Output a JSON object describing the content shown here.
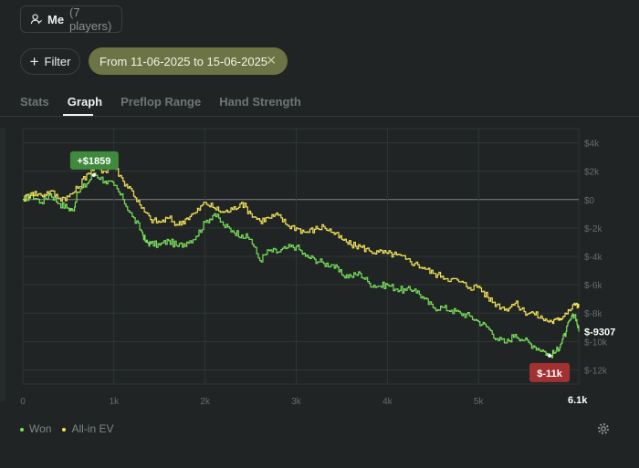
{
  "player_selector": {
    "name": "Me",
    "count": "(7 players)"
  },
  "filter": {
    "label": "Filter",
    "date_range": "From 11-06-2025 to 15-06-2025"
  },
  "tabs": [
    {
      "label": "Stats",
      "active": false
    },
    {
      "label": "Graph",
      "active": true
    },
    {
      "label": "Preflop Range",
      "active": false
    },
    {
      "label": "Hand Strength",
      "active": false
    }
  ],
  "colors": {
    "won": "#7ae05c",
    "ev": "#f2e35a",
    "max_badge": "#3f8a3c",
    "min_badge": "#a23232"
  },
  "chart_data": {
    "type": "line",
    "x_ticks": [
      "0",
      "1k",
      "2k",
      "3k",
      "4k",
      "5k"
    ],
    "y_ticks": [
      "$4k",
      "$2k",
      "$0",
      "$-2k",
      "$-4k",
      "$-6k",
      "$-8k",
      "$-10k",
      "$-12k"
    ],
    "xlim": [
      0,
      6100
    ],
    "ylim": [
      -13000,
      5000
    ],
    "grid": true,
    "legend_position": "bottom-left",
    "x_end_label": "6.1k",
    "final_label": "$-9307",
    "max_label": "+$1859",
    "min_label": "$-11k",
    "series": [
      {
        "name": "Won",
        "color": "#7ae05c",
        "points": [
          [
            0,
            0
          ],
          [
            100,
            300
          ],
          [
            200,
            -200
          ],
          [
            300,
            400
          ],
          [
            400,
            -300
          ],
          [
            500,
            -600
          ],
          [
            550,
            -800
          ],
          [
            600,
            500
          ],
          [
            700,
            1100
          ],
          [
            780,
            1859
          ],
          [
            900,
            1300
          ],
          [
            1000,
            1000
          ],
          [
            1100,
            0
          ],
          [
            1200,
            -1200
          ],
          [
            1300,
            -2200
          ],
          [
            1350,
            -3000
          ],
          [
            1400,
            -3100
          ],
          [
            1500,
            -3200
          ],
          [
            1600,
            -2900
          ],
          [
            1700,
            -3300
          ],
          [
            1800,
            -3000
          ],
          [
            1900,
            -2600
          ],
          [
            2000,
            -1600
          ],
          [
            2100,
            -1000
          ],
          [
            2200,
            -1800
          ],
          [
            2300,
            -2200
          ],
          [
            2400,
            -2500
          ],
          [
            2500,
            -2800
          ],
          [
            2600,
            -4300
          ],
          [
            2700,
            -3600
          ],
          [
            2800,
            -3700
          ],
          [
            2900,
            -3400
          ],
          [
            3000,
            -3300
          ],
          [
            3100,
            -4000
          ],
          [
            3200,
            -4200
          ],
          [
            3300,
            -4500
          ],
          [
            3400,
            -4600
          ],
          [
            3500,
            -5300
          ],
          [
            3600,
            -5400
          ],
          [
            3700,
            -5200
          ],
          [
            3800,
            -5900
          ],
          [
            3900,
            -6100
          ],
          [
            4000,
            -6000
          ],
          [
            4100,
            -6300
          ],
          [
            4200,
            -6400
          ],
          [
            4300,
            -6300
          ],
          [
            4400,
            -7000
          ],
          [
            4500,
            -7600
          ],
          [
            4600,
            -7600
          ],
          [
            4700,
            -7800
          ],
          [
            4800,
            -8000
          ],
          [
            4900,
            -8200
          ],
          [
            5000,
            -8600
          ],
          [
            5100,
            -9000
          ],
          [
            5200,
            -9800
          ],
          [
            5300,
            -10100
          ],
          [
            5400,
            -9500
          ],
          [
            5500,
            -9900
          ],
          [
            5600,
            -10300
          ],
          [
            5700,
            -10600
          ],
          [
            5780,
            -11000
          ],
          [
            5850,
            -10700
          ],
          [
            5900,
            -10200
          ],
          [
            5960,
            -9300
          ],
          [
            6000,
            -8500
          ],
          [
            6060,
            -8100
          ],
          [
            6100,
            -9307
          ]
        ]
      },
      {
        "name": "All-in EV",
        "color": "#f2e35a",
        "points": [
          [
            0,
            0
          ],
          [
            100,
            500
          ],
          [
            200,
            300
          ],
          [
            300,
            600
          ],
          [
            400,
            100
          ],
          [
            500,
            200
          ],
          [
            600,
            800
          ],
          [
            700,
            1800
          ],
          [
            800,
            2300
          ],
          [
            900,
            2000
          ],
          [
            1000,
            2400
          ],
          [
            1100,
            1300
          ],
          [
            1200,
            600
          ],
          [
            1300,
            -600
          ],
          [
            1400,
            -1400
          ],
          [
            1500,
            -1600
          ],
          [
            1600,
            -1300
          ],
          [
            1700,
            -1800
          ],
          [
            1800,
            -1300
          ],
          [
            1900,
            -900
          ],
          [
            2000,
            -200
          ],
          [
            2100,
            -600
          ],
          [
            2200,
            -900
          ],
          [
            2300,
            -700
          ],
          [
            2400,
            -200
          ],
          [
            2500,
            -1000
          ],
          [
            2600,
            -1500
          ],
          [
            2700,
            -1300
          ],
          [
            2800,
            -1100
          ],
          [
            2900,
            -1800
          ],
          [
            3000,
            -2000
          ],
          [
            3100,
            -2300
          ],
          [
            3200,
            -2100
          ],
          [
            3300,
            -1900
          ],
          [
            3400,
            -2300
          ],
          [
            3500,
            -2800
          ],
          [
            3600,
            -3200
          ],
          [
            3700,
            -3300
          ],
          [
            3800,
            -3600
          ],
          [
            3900,
            -3700
          ],
          [
            4000,
            -3800
          ],
          [
            4100,
            -3900
          ],
          [
            4200,
            -4200
          ],
          [
            4300,
            -4500
          ],
          [
            4400,
            -4800
          ],
          [
            4500,
            -5200
          ],
          [
            4600,
            -5400
          ],
          [
            4700,
            -5600
          ],
          [
            4800,
            -5800
          ],
          [
            4900,
            -6200
          ],
          [
            5000,
            -6100
          ],
          [
            5100,
            -6900
          ],
          [
            5200,
            -7400
          ],
          [
            5300,
            -7700
          ],
          [
            5400,
            -7300
          ],
          [
            5500,
            -7900
          ],
          [
            5600,
            -8000
          ],
          [
            5700,
            -8400
          ],
          [
            5800,
            -8600
          ],
          [
            5880,
            -8500
          ],
          [
            5950,
            -8000
          ],
          [
            6050,
            -7300
          ],
          [
            6100,
            -7600
          ]
        ]
      }
    ]
  }
}
